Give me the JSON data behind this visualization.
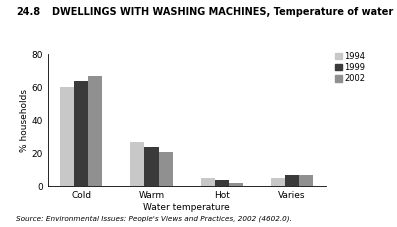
{
  "title_num": "24.8",
  "title_rest": "DWELLINGS WITH WASHING MACHINES, Temperature of water used",
  "ylabel": "% households",
  "xlabel": "Water temperature",
  "source": "Source: Environmental Issues: People's Views and Practices, 2002 (4602.0).",
  "categories": [
    "Cold",
    "Warm",
    "Hot",
    "Varies"
  ],
  "years": [
    "1994",
    "1999",
    "2002"
  ],
  "values": {
    "1994": [
      60,
      27,
      5,
      5
    ],
    "1999": [
      64,
      24,
      4,
      7
    ],
    "2002": [
      67,
      21,
      2,
      7
    ]
  },
  "colors": {
    "1994": "#c8c8c8",
    "1999": "#3a3a3a",
    "2002": "#909090"
  },
  "ylim": [
    0,
    80
  ],
  "yticks": [
    0,
    20,
    40,
    60,
    80
  ],
  "bar_width": 0.2
}
